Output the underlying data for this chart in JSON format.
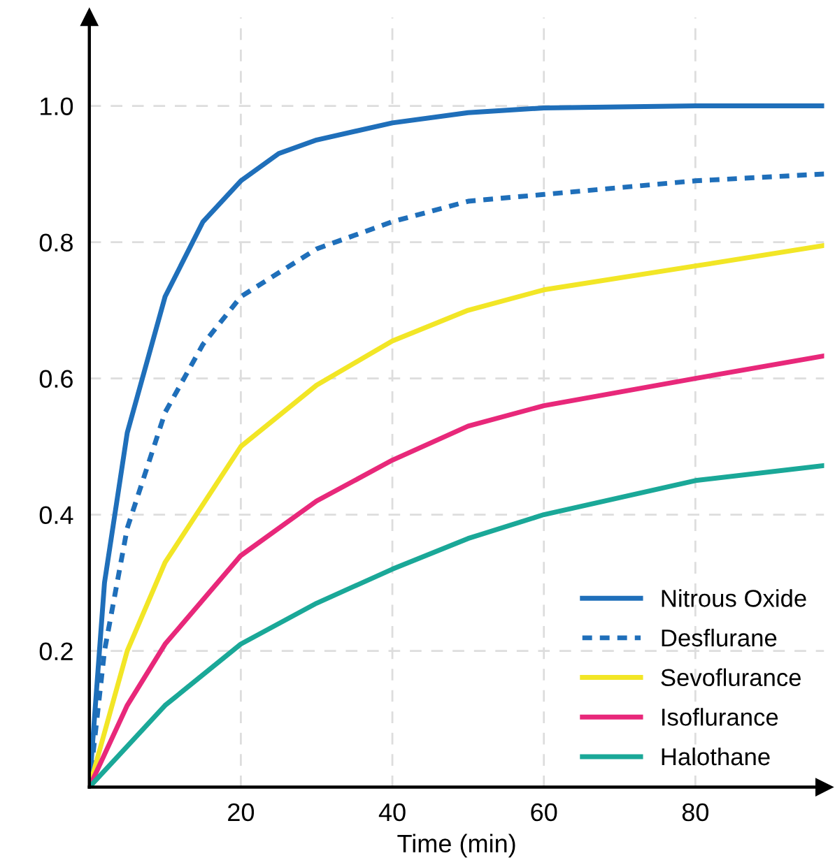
{
  "chart_data": {
    "type": "line",
    "xlabel": "Time (min)",
    "xlim": [
      0,
      97
    ],
    "ylim": [
      0,
      1.13
    ],
    "xticks": [
      20,
      40,
      60,
      80
    ],
    "yticks": [
      0.2,
      0.4,
      0.6,
      0.8,
      {
        "value": 1.0,
        "label": "1.0"
      }
    ],
    "grid": true,
    "legend": "bottom right",
    "marker": "none",
    "series": [
      {
        "name": "Nitrous Oxide",
        "color": "#1f6fba",
        "line_style": "solid",
        "x": [
          0,
          2,
          5,
          10,
          15,
          20,
          25,
          30,
          40,
          50,
          60,
          80,
          97
        ],
        "values": [
          0,
          0.3,
          0.52,
          0.72,
          0.83,
          0.89,
          0.93,
          0.95,
          0.975,
          0.99,
          0.997,
          1.0,
          1.0
        ]
      },
      {
        "name": "Desflurane",
        "color": "#1f6fba",
        "line_style": "dotted",
        "x": [
          0,
          2,
          5,
          10,
          15,
          20,
          30,
          40,
          50,
          60,
          80,
          97
        ],
        "values": [
          0,
          0.2,
          0.38,
          0.55,
          0.65,
          0.72,
          0.79,
          0.83,
          0.86,
          0.87,
          0.89,
          0.9
        ]
      },
      {
        "name": "Sevoflurance",
        "color": "#f2e626",
        "line_style": "solid",
        "x": [
          0,
          5,
          10,
          20,
          30,
          40,
          50,
          60,
          80,
          97
        ],
        "values": [
          0,
          0.2,
          0.33,
          0.5,
          0.59,
          0.655,
          0.7,
          0.73,
          0.765,
          0.795
        ]
      },
      {
        "name": "Isoflurance",
        "color": "#e8287a",
        "line_style": "solid",
        "x": [
          0,
          5,
          10,
          20,
          30,
          40,
          50,
          60,
          80,
          97
        ],
        "values": [
          0,
          0.12,
          0.21,
          0.34,
          0.42,
          0.48,
          0.53,
          0.56,
          0.6,
          0.633
        ]
      },
      {
        "name": "Halothane",
        "color": "#1aa898",
        "line_style": "solid",
        "x": [
          0,
          5,
          10,
          20,
          30,
          40,
          50,
          60,
          80,
          97
        ],
        "values": [
          0,
          0.06,
          0.12,
          0.21,
          0.27,
          0.32,
          0.365,
          0.4,
          0.45,
          0.472
        ]
      }
    ]
  }
}
